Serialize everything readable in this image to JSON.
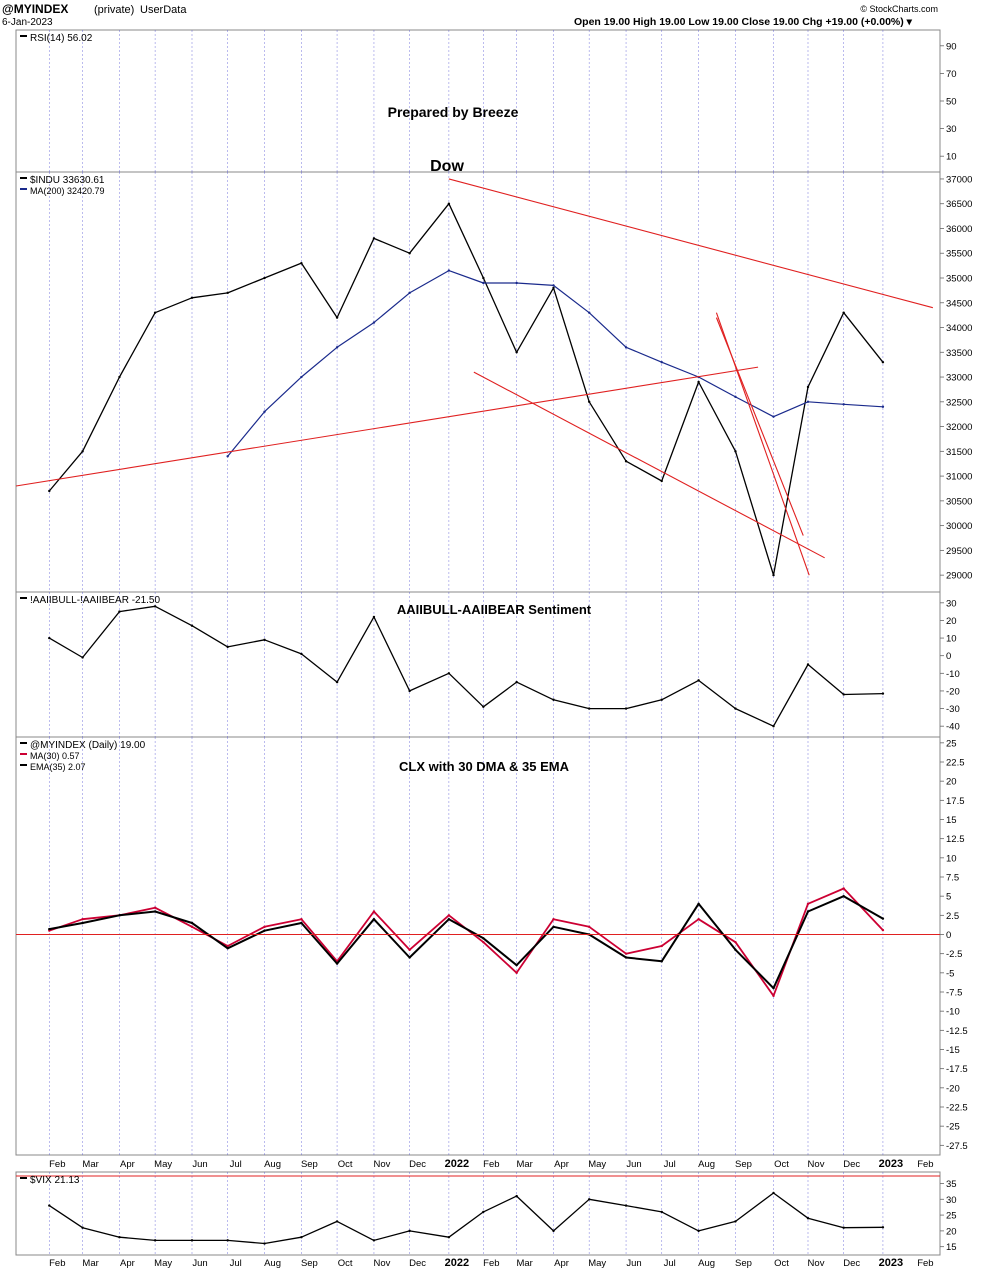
{
  "header": {
    "symbol": "@MYINDEX",
    "privacy": "(private)",
    "source": "UserData",
    "date": "6-Jan-2023",
    "quote": "Open 19.00  High 19.00  Low 19.00  Close 19.00  Chg +19.00 (+0.00%) ▾",
    "watermark": "© StockCharts.com"
  },
  "annotations": {
    "prepared_by": "Prepared by Breeze",
    "dow": "Dow",
    "sentiment_title": "AAIIBULL-AAIIBEAR Sentiment",
    "clx_title": "CLX with 30 DMA & 35 EMA"
  },
  "colors": {
    "price": "#000000",
    "ma200": "#1a2a8c",
    "trendline": "#e02020",
    "ma30": "#cc0033",
    "annotation": "#1a1acc",
    "grid_dotted": "#3333cc"
  },
  "x_axis": {
    "labels": [
      "Feb",
      "Mar",
      "Apr",
      "May",
      "Jun",
      "Jul",
      "Aug",
      "Sep",
      "Oct",
      "Nov",
      "Dec",
      "2022",
      "Feb",
      "Mar",
      "Apr",
      "May",
      "Jun",
      "Jul",
      "Aug",
      "Sep",
      "Oct",
      "Nov",
      "Dec",
      "2023",
      "Feb"
    ],
    "bold": [
      "2022",
      "2023"
    ]
  },
  "chart_data": [
    {
      "type": "line",
      "panel": "rsi",
      "legend": [
        "RSI(14) 56.02"
      ],
      "yticks": [
        10,
        30,
        50,
        70,
        90
      ],
      "ylim": [
        0,
        100
      ],
      "series": []
    },
    {
      "type": "line",
      "panel": "dow",
      "legend": [
        "$INDU 33630.61",
        "MA(200) 32420.79"
      ],
      "yticks": [
        29000,
        29500,
        30000,
        30500,
        31000,
        31500,
        32000,
        32500,
        33000,
        33500,
        34000,
        34500,
        35000,
        35500,
        36000,
        36500,
        37000
      ],
      "ylim": [
        28700,
        37100
      ],
      "x": [
        "2021-02-01",
        "2021-03-01",
        "2021-04-01",
        "2021-05-01",
        "2021-06-01",
        "2021-07-01",
        "2021-08-01",
        "2021-09-01",
        "2021-10-01",
        "2021-11-01",
        "2021-12-01",
        "2022-01-03",
        "2022-02-01",
        "2022-03-01",
        "2022-04-01",
        "2022-05-01",
        "2022-06-01",
        "2022-07-01",
        "2022-08-01",
        "2022-09-01",
        "2022-10-03",
        "2022-11-01",
        "2022-12-01",
        "2023-01-03"
      ],
      "series": [
        {
          "name": "$INDU",
          "values": [
            30700,
            31500,
            33000,
            34300,
            34600,
            34700,
            35000,
            35300,
            34200,
            35800,
            35500,
            36500,
            35000,
            33500,
            34800,
            32500,
            31300,
            30900,
            32900,
            31500,
            29000,
            32800,
            34300,
            33300
          ]
        },
        {
          "name": "MA(200)",
          "values": [
            null,
            null,
            null,
            null,
            null,
            31400,
            32300,
            33000,
            33600,
            34100,
            34700,
            35150,
            34900,
            34900,
            34850,
            34300,
            33600,
            33300,
            33000,
            32600,
            32200,
            32500,
            32450,
            32400
          ]
        }
      ]
    },
    {
      "type": "line",
      "panel": "sentiment",
      "legend": [
        "!AAIIBULL-!AAIIBEAR -21.50"
      ],
      "yticks": [
        -40,
        -30,
        -20,
        -10,
        0,
        10,
        20,
        30
      ],
      "ylim": [
        -45,
        35
      ],
      "x": [
        "2021-02-01",
        "2021-03-01",
        "2021-04-01",
        "2021-05-01",
        "2021-06-01",
        "2021-07-01",
        "2021-08-01",
        "2021-09-01",
        "2021-10-01",
        "2021-11-01",
        "2021-12-01",
        "2022-01-03",
        "2022-02-01",
        "2022-03-01",
        "2022-04-01",
        "2022-05-01",
        "2022-06-01",
        "2022-07-01",
        "2022-08-01",
        "2022-09-01",
        "2022-10-03",
        "2022-11-01",
        "2022-12-01",
        "2023-01-03"
      ],
      "series": [
        {
          "name": "!AAIIBULL-!AAIIBEAR",
          "values": [
            10,
            -1,
            25,
            28,
            17,
            5,
            9,
            1,
            -15,
            22,
            -20,
            -10,
            -29,
            -15,
            -25,
            -30,
            -30,
            -25,
            -14,
            -30,
            -40,
            -5,
            -22,
            -21.5
          ]
        }
      ]
    },
    {
      "type": "line",
      "panel": "clx",
      "legend": [
        "@MYINDEX (Daily) 19.00",
        "MA(30) 0.57",
        "EMA(35) 2.07"
      ],
      "yticks": [
        -27.5,
        -25,
        -22.5,
        -20,
        -17.5,
        -15,
        -12.5,
        -10,
        -7.5,
        -5,
        -2.5,
        0,
        2.5,
        5,
        7.5,
        10,
        12.5,
        15,
        17.5,
        20,
        22.5,
        25
      ],
      "ylim": [
        -28.5,
        25.5
      ],
      "x": [
        "2021-02-01",
        "2021-03-01",
        "2021-04-01",
        "2021-05-01",
        "2021-06-01",
        "2021-07-01",
        "2021-08-01",
        "2021-09-01",
        "2021-10-01",
        "2021-11-01",
        "2021-12-01",
        "2022-01-03",
        "2022-02-01",
        "2022-03-01",
        "2022-04-01",
        "2022-05-01",
        "2022-06-01",
        "2022-07-01",
        "2022-08-01",
        "2022-09-01",
        "2022-10-03",
        "2022-11-01",
        "2022-12-01",
        "2023-01-03"
      ],
      "series": [
        {
          "name": "MA(30)",
          "values": [
            0.5,
            2,
            2.5,
            3.5,
            1,
            -1.5,
            1,
            2,
            -3.5,
            3,
            -2,
            2.5,
            -1,
            -5,
            2,
            1,
            -2.5,
            -1.5,
            2,
            -1,
            -8,
            4,
            6,
            0.57
          ]
        },
        {
          "name": "EMA(35)",
          "values": [
            0.7,
            1.5,
            2.5,
            3,
            1.5,
            -1.8,
            0.5,
            1.5,
            -3.8,
            2,
            -3,
            2,
            -0.5,
            -4,
            1,
            0,
            -3,
            -3.5,
            4,
            -2,
            -7,
            3,
            5,
            2.07
          ]
        }
      ]
    },
    {
      "type": "line",
      "panel": "vix",
      "legend": [
        "$VIX 21.13"
      ],
      "yticks": [
        15,
        20,
        25,
        30,
        35
      ],
      "ylim": [
        13,
        38
      ],
      "x": [
        "2021-02-01",
        "2021-03-01",
        "2021-04-01",
        "2021-05-01",
        "2021-06-01",
        "2021-07-01",
        "2021-08-01",
        "2021-09-01",
        "2021-10-01",
        "2021-11-01",
        "2021-12-01",
        "2022-01-03",
        "2022-02-01",
        "2022-03-01",
        "2022-04-01",
        "2022-05-01",
        "2022-06-01",
        "2022-07-01",
        "2022-08-01",
        "2022-09-01",
        "2022-10-03",
        "2022-11-01",
        "2022-12-01",
        "2023-01-03"
      ],
      "series": [
        {
          "name": "$VIX",
          "values": [
            28,
            21,
            18,
            17,
            17,
            17,
            16,
            18,
            23,
            17,
            20,
            18,
            26,
            31,
            20,
            30,
            28,
            26,
            20,
            23,
            32,
            24,
            21,
            21.13
          ]
        }
      ]
    }
  ]
}
